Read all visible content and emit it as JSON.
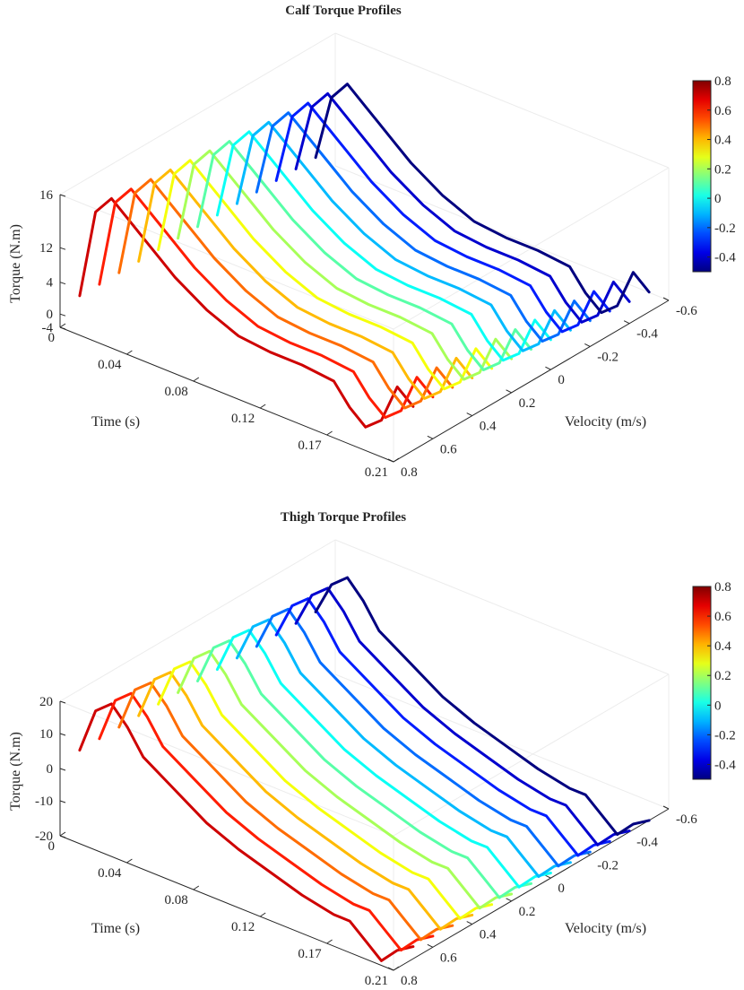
{
  "chart_data": [
    {
      "type": "line",
      "title": "Calf Torque Profiles",
      "xlabel": "Time   (s)",
      "ylabel": "Velocity   (m/s)",
      "zlabel": "Torque   (N.m)",
      "x_ticks": [
        "0",
        "0.04",
        "0.08",
        "0.12",
        "0.17",
        "0.21"
      ],
      "y_ticks": [
        "0.8",
        "0.6",
        "0.4",
        "0.2",
        "0",
        "-0.2",
        "-0.4",
        "-0.6"
      ],
      "z_ticks": [
        "-4",
        "0",
        "4",
        "12",
        "16"
      ],
      "colorbar_ticks": [
        "0.8",
        "0.6",
        "0.4",
        "0.2",
        "0",
        "-0.2",
        "-0.4"
      ],
      "colorbar_range": [
        -0.5,
        0.8
      ],
      "velocities": [
        0.7,
        0.6,
        0.5,
        0.4,
        0.3,
        0.2,
        0.1,
        0.0,
        -0.1,
        -0.2,
        -0.3,
        -0.4,
        -0.5
      ],
      "time": [
        0,
        0.01,
        0.02,
        0.03,
        0.04,
        0.05,
        0.06,
        0.08,
        0.1,
        0.12,
        0.14,
        0.16,
        0.17,
        0.18,
        0.19,
        0.2,
        0.21
      ],
      "profile_torque": [
        -1,
        9,
        12,
        10,
        8,
        6,
        4,
        1,
        -1,
        -1.5,
        -1.5,
        -2,
        -5,
        -7,
        -5,
        1,
        -1
      ]
    },
    {
      "type": "line",
      "title": "Thigh Torque Profiles",
      "xlabel": "Time   (s)",
      "ylabel": "Velocity   (m/s)",
      "zlabel": "Torque   (N.m)",
      "x_ticks": [
        "0",
        "0.04",
        "0.08",
        "0.12",
        "0.17",
        "0.21"
      ],
      "y_ticks": [
        "0.8",
        "0.6",
        "0.4",
        "0.2",
        "0",
        "-0.2",
        "-0.4",
        "-0.6"
      ],
      "z_ticks": [
        "-20",
        "-10",
        "0",
        "10",
        "20"
      ],
      "colorbar_ticks": [
        "0.8",
        "0.6",
        "0.4",
        "0.2",
        "0",
        "-0.2",
        "-0.4"
      ],
      "colorbar_range": [
        -0.5,
        0.8
      ],
      "velocities": [
        0.7,
        0.6,
        0.5,
        0.4,
        0.3,
        0.2,
        0.1,
        0.0,
        -0.1,
        -0.2,
        -0.3,
        -0.4,
        -0.5
      ],
      "time": [
        0,
        0.01,
        0.02,
        0.03,
        0.04,
        0.06,
        0.08,
        0.1,
        0.12,
        0.14,
        0.16,
        0.17,
        0.18,
        0.19,
        0.2,
        0.21
      ],
      "profile_torque": [
        2,
        12,
        16,
        11,
        4,
        -2,
        -8,
        -12,
        -15,
        -18,
        -20,
        -20,
        -24,
        -28,
        -23,
        -20
      ]
    }
  ]
}
